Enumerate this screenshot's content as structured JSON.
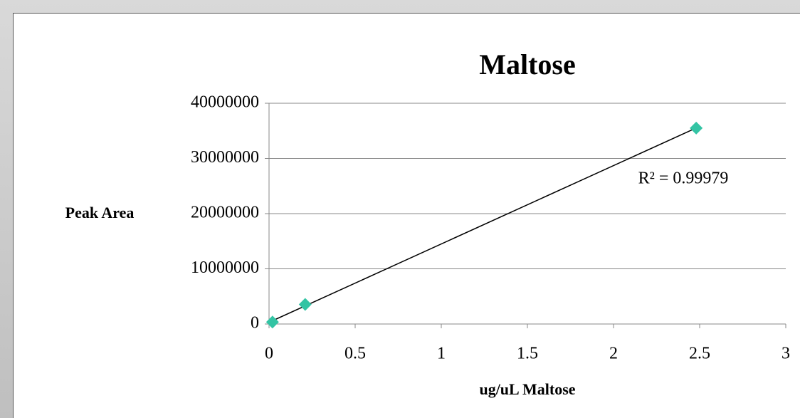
{
  "chart_data": {
    "type": "scatter",
    "title": "Maltose",
    "x_label": "ug/uL Maltose",
    "y_label": "Peak Area",
    "annotation": "R² = 0.99979",
    "x": [
      0.02,
      0.21,
      2.48
    ],
    "values": [
      350000,
      3550000,
      35500000
    ],
    "color": "#33c4a4",
    "xlim": [
      0,
      3
    ],
    "xticks": [
      0,
      0.5,
      1,
      1.5,
      2,
      2.5,
      3
    ],
    "ylim": [
      0,
      40000000
    ],
    "yticks": [
      0,
      10000000,
      20000000,
      30000000,
      40000000
    ],
    "grid": true,
    "trendline": true
  }
}
